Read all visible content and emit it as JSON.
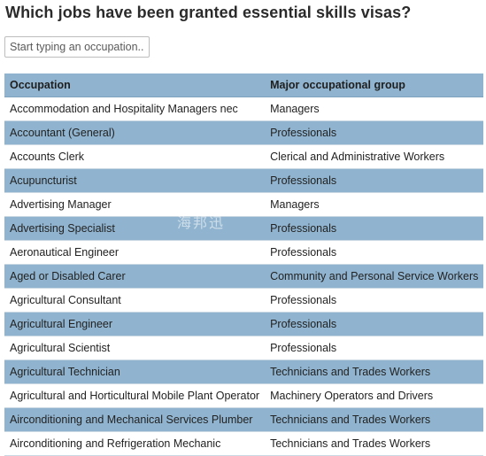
{
  "title": "Which jobs have been granted essential skills visas?",
  "search": {
    "placeholder": "Start typing an occupation...",
    "value": ""
  },
  "table": {
    "columns": [
      "Occupation",
      "Major occupational group"
    ],
    "rows": [
      [
        "Accommodation and Hospitality Managers nec",
        "Managers"
      ],
      [
        "Accountant (General)",
        "Professionals"
      ],
      [
        "Accounts Clerk",
        "Clerical and Administrative Workers"
      ],
      [
        "Acupuncturist",
        "Professionals"
      ],
      [
        "Advertising Manager",
        "Managers"
      ],
      [
        "Advertising Specialist",
        "Professionals"
      ],
      [
        "Aeronautical Engineer",
        "Professionals"
      ],
      [
        "Aged or Disabled Carer",
        "Community and Personal Service Workers"
      ],
      [
        "Agricultural Consultant",
        "Professionals"
      ],
      [
        "Agricultural Engineer",
        "Professionals"
      ],
      [
        "Agricultural Scientist",
        "Professionals"
      ],
      [
        "Agricultural Technician",
        "Technicians and Trades Workers"
      ],
      [
        "Agricultural and Horticultural Mobile Plant Operator",
        "Machinery Operators and Drivers"
      ],
      [
        "Airconditioning and Mechanical Services Plumber",
        "Technicians and Trades Workers"
      ],
      [
        "Airconditioning and Refrigeration Mechanic",
        "Technicians and Trades Workers"
      ]
    ]
  },
  "colors": {
    "header_bg": "#90b4cf",
    "stripe_bg": "#90b4cf",
    "row_bg": "#ffffff",
    "text": "#222222"
  },
  "watermark": "海邦迅"
}
